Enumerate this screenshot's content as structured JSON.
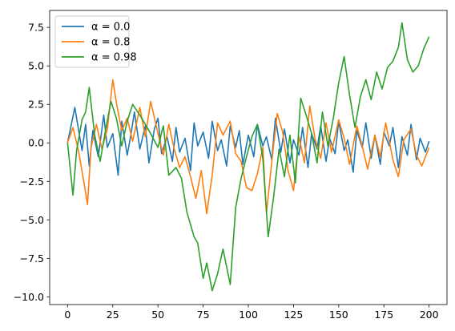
{
  "chart_data": {
    "type": "line",
    "title": "",
    "xlabel": "",
    "ylabel": "",
    "xlim": [
      -9.9,
      209.9
    ],
    "ylim": [
      -10.5,
      8.6
    ],
    "xticks": [
      0,
      25,
      50,
      75,
      100,
      125,
      150,
      175,
      200
    ],
    "yticks": [
      -10.0,
      -7.5,
      -5.0,
      -2.5,
      0.0,
      2.5,
      5.0,
      7.5
    ],
    "xtick_labels": [
      "0",
      "25",
      "50",
      "75",
      "100",
      "125",
      "150",
      "175",
      "200"
    ],
    "ytick_labels": [
      "−10.0",
      "−7.5",
      "−5.0",
      "−2.5",
      "0.0",
      "2.5",
      "5.0",
      "7.5"
    ],
    "grid": false,
    "legend_position": "top-left",
    "series": [
      {
        "name": "α = 0.0",
        "legend_label": "α = 0.0",
        "color": "#1f77b4",
        "x": [
          0,
          4,
          8,
          10,
          12,
          14,
          17,
          20,
          22,
          25,
          28,
          30,
          33,
          35,
          37,
          40,
          43,
          45,
          48,
          50,
          52,
          55,
          58,
          60,
          62,
          65,
          68,
          70,
          72,
          75,
          78,
          80,
          83,
          85,
          88,
          90,
          93,
          95,
          97,
          100,
          103,
          105,
          108,
          110,
          113,
          115,
          118,
          120,
          123,
          125,
          128,
          130,
          133,
          135,
          138,
          140,
          143,
          145,
          148,
          150,
          153,
          155,
          158,
          160,
          163,
          165,
          168,
          170,
          173,
          175,
          178,
          180,
          183,
          185,
          188,
          190,
          193,
          195,
          198,
          200
        ],
        "y": [
          0.0,
          2.3,
          -0.5,
          1.2,
          -1.5,
          0.8,
          -0.9,
          1.8,
          -0.3,
          0.6,
          -2.1,
          1.4,
          -0.8,
          0.5,
          2.0,
          -0.4,
          1.1,
          -1.3,
          0.9,
          1.6,
          -0.7,
          0.4,
          -1.2,
          1.0,
          -0.6,
          0.3,
          -1.8,
          1.3,
          -0.2,
          0.7,
          -1.0,
          1.4,
          -0.5,
          0.2,
          -1.5,
          1.1,
          -0.3,
          0.8,
          -1.4,
          0.5,
          -0.9,
          1.2,
          -0.2,
          0.4,
          -1.1,
          1.6,
          -0.6,
          0.9,
          -1.3,
          0.2,
          -0.8,
          1.0,
          -1.6,
          0.6,
          -0.4,
          1.1,
          -1.2,
          0.3,
          -0.7,
          1.4,
          -0.5,
          0.2,
          -1.9,
          0.8,
          -0.3,
          1.3,
          -1.0,
          0.5,
          -1.4,
          0.7,
          -0.2,
          1.0,
          -1.6,
          0.4,
          -0.8,
          1.2,
          -1.1,
          0.3,
          -0.6,
          0.1
        ]
      },
      {
        "name": "α = 0.8",
        "legend_label": "α = 0.8",
        "color": "#ff7f0e",
        "x": [
          0,
          3,
          6,
          9,
          11,
          13,
          16,
          19,
          22,
          25,
          27,
          30,
          33,
          36,
          40,
          43,
          46,
          50,
          53,
          56,
          59,
          62,
          65,
          68,
          71,
          74,
          77,
          80,
          83,
          86,
          90,
          93,
          96,
          99,
          102,
          105,
          108,
          110,
          113,
          116,
          119,
          122,
          125,
          128,
          131,
          134,
          137,
          140,
          143,
          146,
          150,
          153,
          156,
          160,
          163,
          166,
          170,
          173,
          176,
          180,
          183,
          186,
          190,
          193,
          196,
          200
        ],
        "y": [
          0.0,
          1.0,
          -0.5,
          -2.5,
          -4.0,
          -0.3,
          1.2,
          -0.4,
          0.9,
          4.1,
          2.6,
          0.8,
          1.6,
          0.1,
          2.3,
          0.4,
          2.7,
          0.6,
          -0.8,
          1.2,
          -0.4,
          -1.6,
          -0.9,
          -2.2,
          -3.6,
          -1.8,
          -4.6,
          -2.1,
          1.3,
          0.5,
          1.4,
          -0.7,
          -1.2,
          -2.9,
          -3.1,
          -2.0,
          -0.3,
          -4.6,
          -1.2,
          1.9,
          0.7,
          -1.8,
          -3.1,
          0.4,
          -1.3,
          2.4,
          0.2,
          -1.0,
          1.3,
          -0.6,
          1.5,
          0.3,
          -1.4,
          1.1,
          -0.2,
          -1.7,
          0.5,
          -0.9,
          1.3,
          -1.1,
          -2.2,
          0.2,
          0.9,
          -0.8,
          -1.5,
          -0.3
        ]
      },
      {
        "name": "α = 0.98",
        "legend_label": "α = 0.98",
        "color": "#2ca02c",
        "x": [
          0,
          3,
          5,
          8,
          10,
          12,
          15,
          18,
          21,
          24,
          27,
          30,
          33,
          36,
          40,
          43,
          46,
          50,
          53,
          56,
          60,
          63,
          66,
          70,
          72,
          75,
          77,
          80,
          83,
          86,
          90,
          93,
          96,
          99,
          102,
          105,
          108,
          111,
          114,
          117,
          120,
          123,
          126,
          129,
          132,
          135,
          138,
          141,
          144,
          147,
          150,
          153,
          156,
          159,
          162,
          165,
          168,
          171,
          174,
          177,
          180,
          183,
          185,
          188,
          191,
          194,
          197,
          200
        ],
        "y": [
          0.0,
          -3.4,
          -0.5,
          1.5,
          2.0,
          3.6,
          0.5,
          -1.2,
          0.8,
          2.7,
          1.6,
          -0.2,
          1.4,
          2.5,
          1.8,
          1.2,
          0.6,
          -0.3,
          1.1,
          -2.1,
          -1.6,
          -2.3,
          -4.5,
          -6.1,
          -6.5,
          -8.8,
          -7.8,
          -9.6,
          -8.5,
          -6.9,
          -9.2,
          -4.2,
          -2.3,
          -0.9,
          0.4,
          1.2,
          -1.0,
          -6.1,
          -3.5,
          -0.4,
          -2.2,
          0.5,
          -2.6,
          2.9,
          1.8,
          0.6,
          -1.3,
          2.0,
          -0.2,
          1.6,
          3.9,
          5.6,
          3.1,
          1.0,
          3.0,
          4.1,
          2.8,
          4.6,
          3.5,
          4.9,
          5.3,
          6.2,
          7.8,
          5.4,
          4.6,
          5.0,
          6.1,
          6.9
        ]
      }
    ]
  }
}
